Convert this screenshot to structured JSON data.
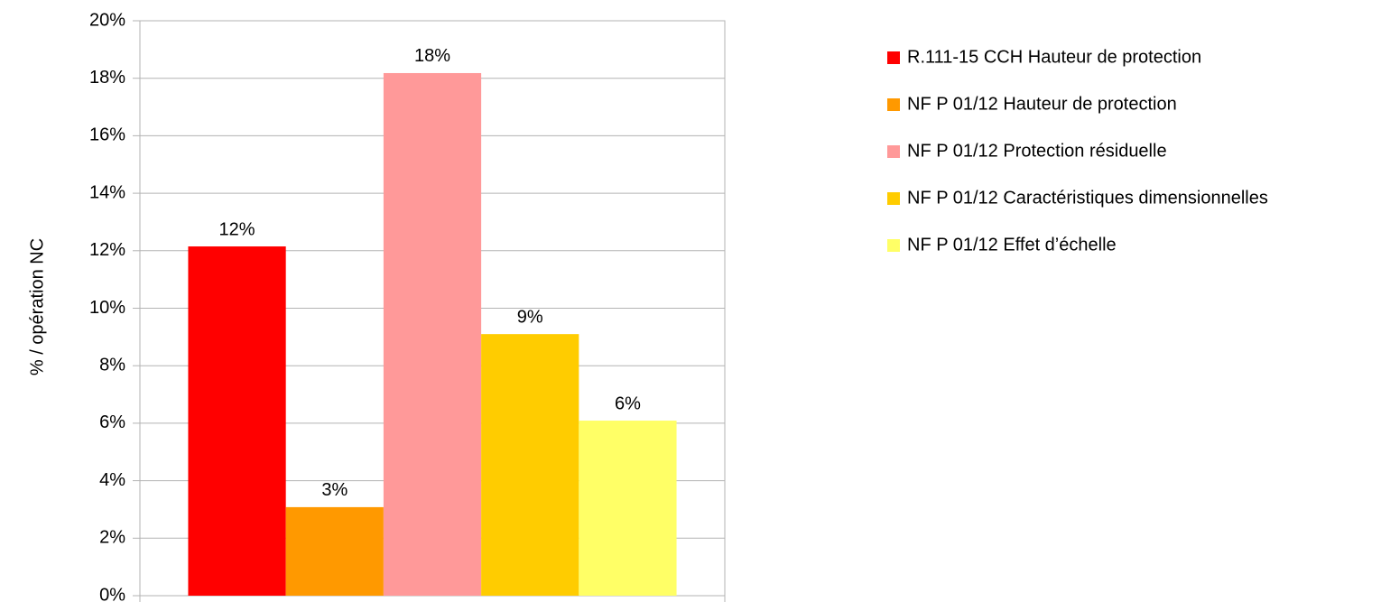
{
  "chart_data": {
    "type": "bar",
    "y_axis_label": "% / opération NC",
    "categories": [
      null
    ],
    "series": [
      {
        "name": "R.111-15 CCH Hauteur de protection",
        "color": "#ff0000",
        "values": [
          12.15
        ],
        "value_labels": [
          "12%"
        ]
      },
      {
        "name": "NF P 01/12 Hauteur de protection",
        "color": "#ff9900",
        "values": [
          3.08
        ],
        "value_labels": [
          "3%"
        ]
      },
      {
        "name": "NF P 01/12 Protection résiduelle",
        "color": "#ff9999",
        "values": [
          18.18
        ],
        "value_labels": [
          "18%"
        ]
      },
      {
        "name": "NF P 01/12 Caractéristiques dimensionnelles",
        "color": "#ffcc00",
        "values": [
          9.1
        ],
        "value_labels": [
          "9%"
        ]
      },
      {
        "name": "NF P 01/12 Effet d’échelle",
        "color": "#ffff66",
        "values": [
          6.09
        ],
        "value_labels": [
          "6%"
        ]
      }
    ],
    "ylim": [
      0,
      20
    ],
    "yticks": [
      {
        "value": 0,
        "label": "0%"
      },
      {
        "value": 2,
        "label": "2%"
      },
      {
        "value": 4,
        "label": "4%"
      },
      {
        "value": 6,
        "label": "6%"
      },
      {
        "value": 8,
        "label": "8%"
      },
      {
        "value": 10,
        "label": "10%"
      },
      {
        "value": 12,
        "label": "12%"
      },
      {
        "value": 14,
        "label": "14%"
      },
      {
        "value": 16,
        "label": "16%"
      },
      {
        "value": 18,
        "label": "18%"
      },
      {
        "value": 20,
        "label": "20%"
      }
    ],
    "grid": true,
    "legend": "right"
  }
}
